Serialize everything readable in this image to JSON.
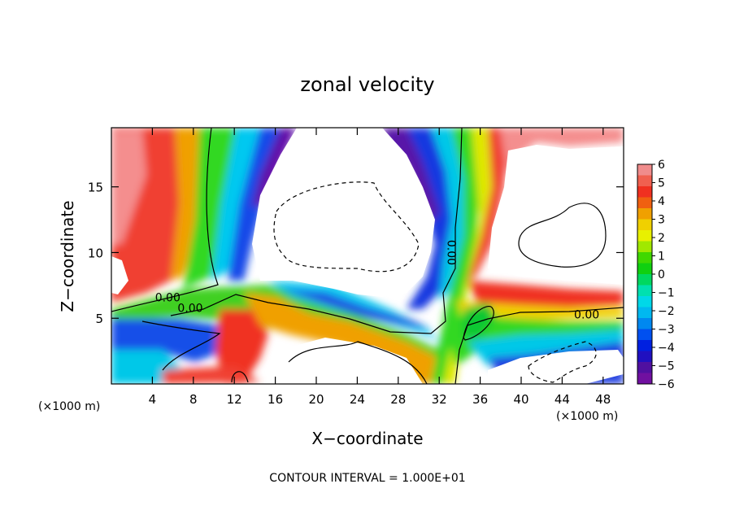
{
  "chart_data": {
    "type": "heatmap",
    "title": "zonal velocity",
    "xlabel": "X−coordinate",
    "ylabel": "Z−coordinate",
    "x_unit_left": "(×1000 m)",
    "x_unit_right": "(×1000 m)",
    "xlim": [
      0,
      50
    ],
    "ylim": [
      0,
      19.5
    ],
    "x_ticks": [
      4,
      8,
      12,
      16,
      20,
      24,
      28,
      32,
      36,
      40,
      44,
      48
    ],
    "y_ticks": [
      5,
      10,
      15
    ],
    "colorbar": {
      "ticks": [
        "6",
        "5",
        "4",
        "3",
        "2",
        "1",
        "0",
        "−1",
        "−2",
        "−3",
        "−4",
        "−5",
        "−6"
      ],
      "colors": [
        "#f08c8c",
        "#f06050",
        "#f03020",
        "#f06010",
        "#f0a000",
        "#f0d000",
        "#e8f000",
        "#a0e800",
        "#40d800",
        "#10d010",
        "#00d860",
        "#00e0b0",
        "#00d8e8",
        "#00b8f0",
        "#0088f0",
        "#0050f0",
        "#0020e0",
        "#2010c0",
        "#5010a0",
        "#7010a0"
      ]
    },
    "contour_labels": [
      {
        "text": "0.00",
        "x": 5.5,
        "y": 6.6
      },
      {
        "text": "0.00",
        "x": 7.7,
        "y": 5.8
      },
      {
        "text": "0.00",
        "x": 33.2,
        "y": 10.0
      },
      {
        "text": "0.00",
        "x": 46.4,
        "y": 5.3
      }
    ],
    "footnote": "CONTOUR INTERVAL = 1.000E+01",
    "grid": false,
    "legend": "right"
  }
}
